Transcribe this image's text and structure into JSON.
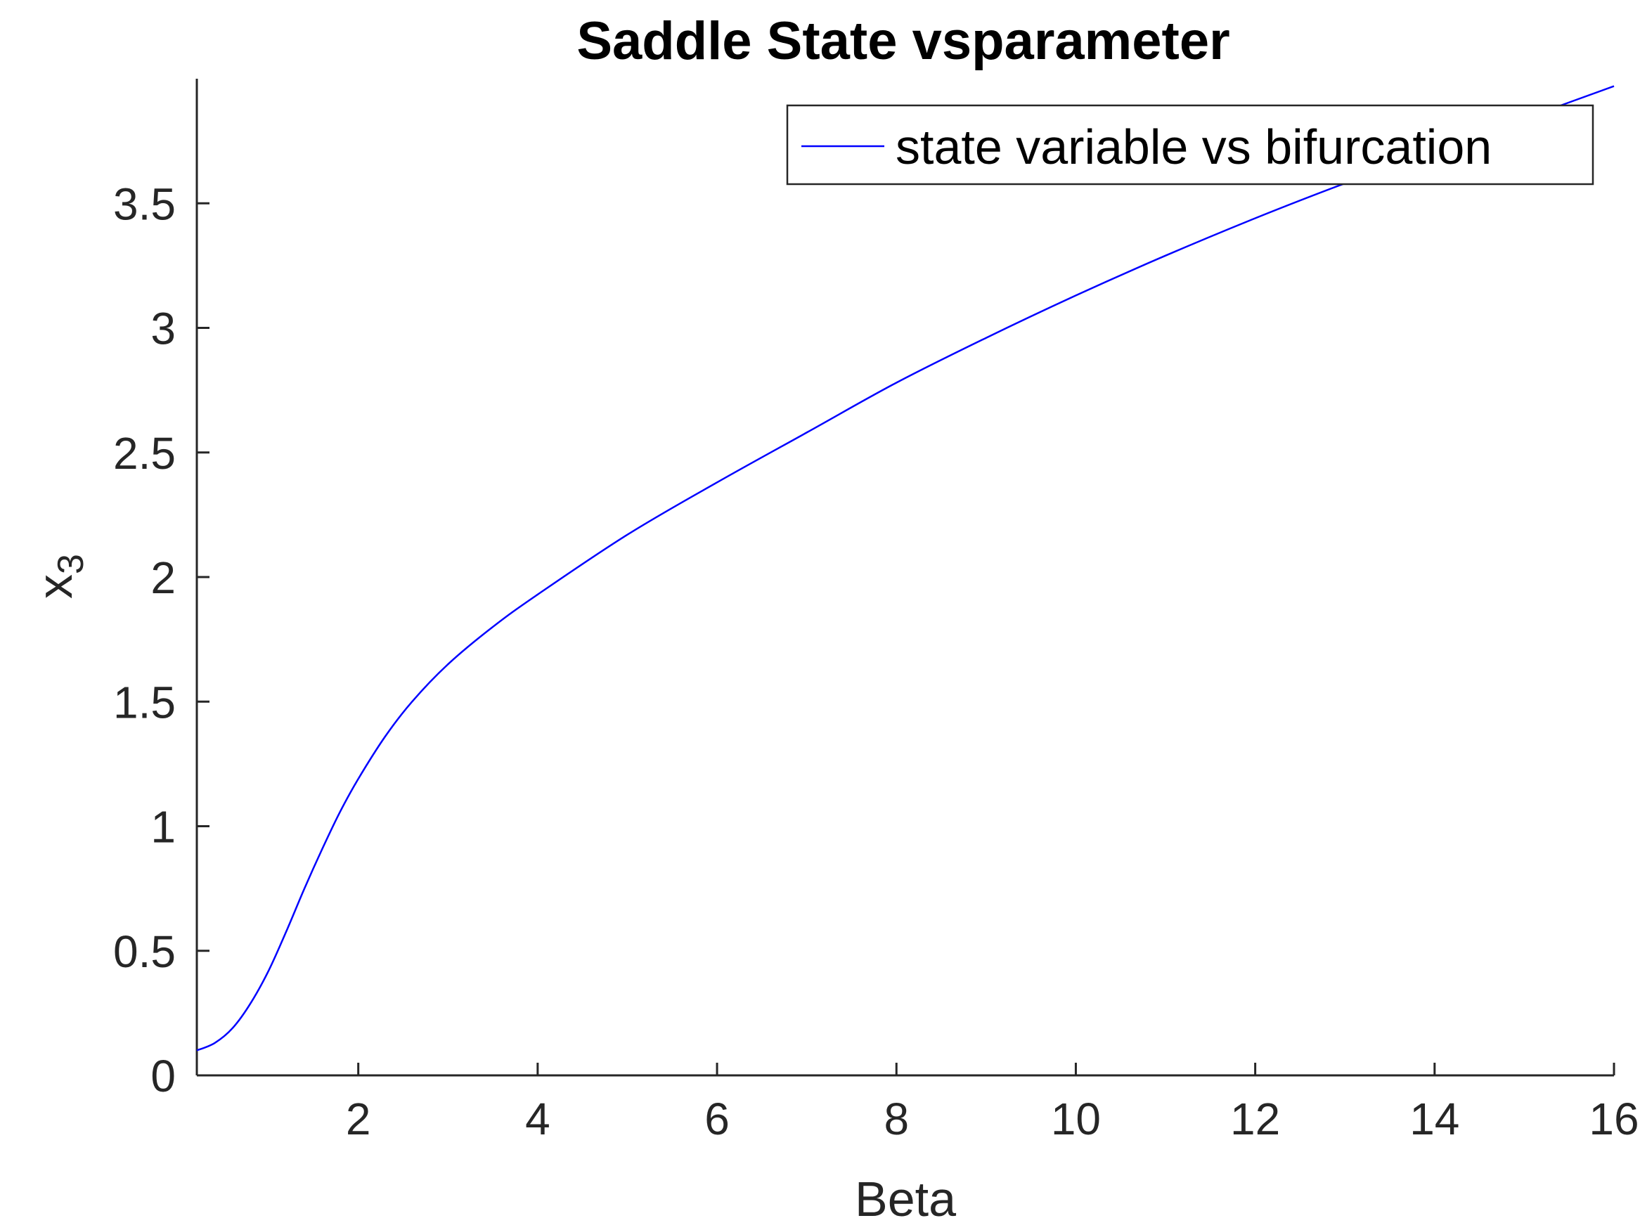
{
  "chart_data": {
    "type": "line",
    "title": "Saddle  State vsparameter",
    "xlabel": "Beta",
    "ylabel_base": "x",
    "ylabel_sub": "3",
    "xlim": [
      0.2,
      16
    ],
    "ylim": [
      0,
      4
    ],
    "xticks": [
      2,
      4,
      6,
      8,
      10,
      12,
      14,
      16
    ],
    "xtick_labels": [
      "2",
      "4",
      "6",
      "8",
      "10",
      "12",
      "14",
      "16"
    ],
    "yticks": [
      0,
      0.5,
      1,
      1.5,
      2,
      2.5,
      3,
      3.5
    ],
    "ytick_labels": [
      "0",
      "0.5",
      "1",
      "1.5",
      "2",
      "2.5",
      "3",
      "3.5"
    ],
    "grid": false,
    "legend_position": "top-right",
    "series": [
      {
        "name": "state variable vs bifurcation",
        "color": "#0000ff",
        "x": [
          0.2,
          0.4,
          0.6,
          0.8,
          1.0,
          1.2,
          1.4,
          1.6,
          1.8,
          2.0,
          2.3,
          2.6,
          3.0,
          3.5,
          4.0,
          5.0,
          6.0,
          7.0,
          8.0,
          9.0,
          10.0,
          11.0,
          12.0,
          13.0,
          14.0,
          15.0,
          16.0
        ],
        "y": [
          0.1,
          0.13,
          0.19,
          0.29,
          0.42,
          0.58,
          0.75,
          0.91,
          1.06,
          1.19,
          1.36,
          1.5,
          1.65,
          1.8,
          1.93,
          2.17,
          2.38,
          2.58,
          2.78,
          2.96,
          3.13,
          3.29,
          3.44,
          3.58,
          3.71,
          3.84,
          3.97
        ]
      }
    ]
  }
}
